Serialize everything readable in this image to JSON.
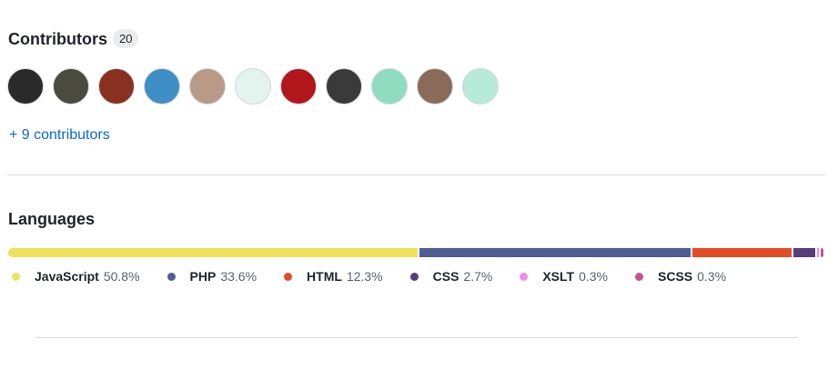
{
  "contributors": {
    "title": "Contributors",
    "count": "20",
    "more_link": "+ 9 contributors"
  },
  "languages": {
    "title": "Languages",
    "categories": [
      "JavaScript",
      "PHP",
      "HTML",
      "CSS",
      "XSLT",
      "SCSS"
    ],
    "values": [
      50.8,
      33.6,
      12.3,
      2.7,
      0.3,
      0.3
    ],
    "value_labels": [
      "50.8%",
      "33.6%",
      "12.3%",
      "2.7%",
      "0.3%",
      "0.3%"
    ],
    "colors": [
      "#f1e05a",
      "#4f5d95",
      "#e34c26",
      "#563d7c",
      "#eb8ceb",
      "#c6538c"
    ]
  }
}
